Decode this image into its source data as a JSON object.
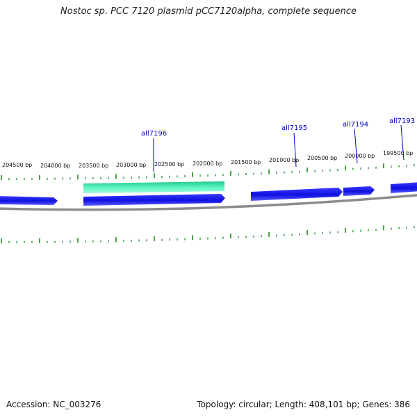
{
  "title": "Nostoc sp. PCC 7120 plasmid pCC7120alpha, complete sequence",
  "footer": {
    "accession": "Accession: NC_003276",
    "summary": "Topology: circular; Length: 408,101 bp; Genes: 386"
  },
  "colors": {
    "forward_gene": "#1a1aee",
    "highlight_gene": "#2ee6a6",
    "tick": "#228b22",
    "backbone": "#8c8c8c",
    "gene_label": "#0000c8"
  },
  "ruler": {
    "tick_labels": [
      "204500 bp",
      "204000 bp",
      "203500 bp",
      "203000 bp",
      "202500 bp",
      "202000 bp",
      "201500 bp",
      "201000 bp",
      "200500 bp",
      "200000 bp",
      "199500 bp"
    ]
  },
  "genes": [
    {
      "label": "all7196"
    },
    {
      "label": "all7195"
    },
    {
      "label": "all7194"
    },
    {
      "label": "all7193"
    }
  ]
}
